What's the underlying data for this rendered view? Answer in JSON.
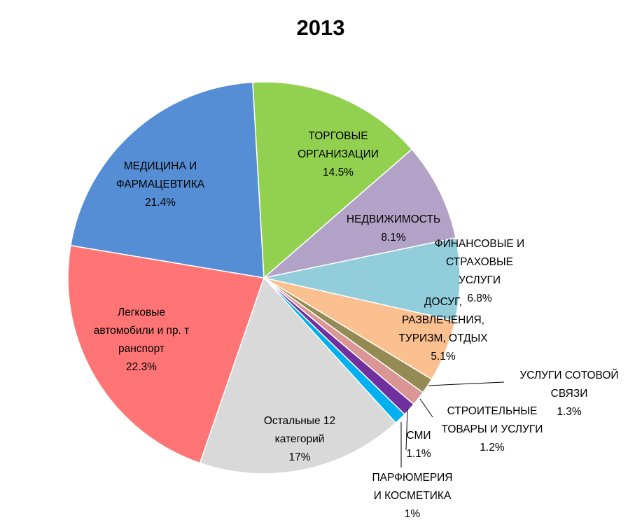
{
  "chart_data": {
    "type": "pie",
    "title": "2013",
    "start_angle_deg": -3.3,
    "direction": "clockwise",
    "slices": [
      {
        "name": "ТОРГОВЫЕ ОРГАНИЗАЦИИ",
        "lines": [
          "ТОРГОВЫЕ",
          "ОРГАНИЗАЦИИ"
        ],
        "value": 14.5,
        "value_label": "14.5%",
        "color": "#92d050"
      },
      {
        "name": "НЕДВИЖИМОСТЬ",
        "lines": [
          "НЕДВИЖИМОСТЬ"
        ],
        "value": 8.1,
        "value_label": "8.1%",
        "color": "#b3a2c7"
      },
      {
        "name": "ФИНАНСОВЫЕ И СТРАХОВЫЕ УСЛУГИ",
        "lines": [
          "ФИНАНСОВЫЕ И",
          "СТРАХОВЫЕ",
          "УСЛУГИ"
        ],
        "value": 6.8,
        "value_label": "6.8%",
        "color": "#92cddc"
      },
      {
        "name": "ДОСУГ, РАЗВЛЕЧЕНИЯ, ТУРИЗМ, ОТДЫХ",
        "lines": [
          "ДОСУГ,",
          "РАЗВЛЕЧЕНИЯ,",
          "ТУРИЗМ, ОТДЫХ"
        ],
        "value": 5.1,
        "value_label": "5.1%",
        "color": "#fac090"
      },
      {
        "name": "УСЛУГИ СОТОВОЙ СВЯЗИ",
        "lines": [
          "УСЛУГИ СОТОВОЙ",
          "СВЯЗИ"
        ],
        "value": 1.3,
        "value_label": "1.3%",
        "color": "#948a54"
      },
      {
        "name": "СТРОИТЕЛЬНЫЕ ТОВАРЫ И УСЛУГИ",
        "lines": [
          "СТРОИТЕЛЬНЫЕ",
          "ТОВАРЫ И УСЛУГИ"
        ],
        "value": 1.2,
        "value_label": "1.2%",
        "color": "#d99694"
      },
      {
        "name": "СМИ",
        "lines": [
          "СМИ"
        ],
        "value": 1.1,
        "value_label": "1.1%",
        "color": "#7030a0"
      },
      {
        "name": "ПАРФЮМЕРИЯ И КОСМЕТИКА",
        "lines": [
          "ПАРФЮМЕРИЯ",
          "И КОСМЕТИКА"
        ],
        "value": 1.0,
        "value_label": "1%",
        "color": "#00b0f0"
      },
      {
        "name": "Остальные 12 категорий",
        "lines": [
          "Остальные 12",
          "категорий"
        ],
        "value": 17.0,
        "value_label": "17%",
        "color": "#d9d9d9"
      },
      {
        "name": "Легковые автомобили и пр. транспорт",
        "lines": [
          "Легковые",
          "автомобили и пр. т",
          "ранспорт"
        ],
        "value": 22.3,
        "value_label": "22.3%",
        "color": "#ff7575"
      },
      {
        "name": "МЕДИЦИНА И ФАРМАЦЕВТИКА",
        "lines": [
          "МЕДИЦИНА И",
          "ФАРМАЦЕВТИКА"
        ],
        "value": 21.4,
        "value_label": "21.4%",
        "color": "#558ed5"
      }
    ]
  }
}
